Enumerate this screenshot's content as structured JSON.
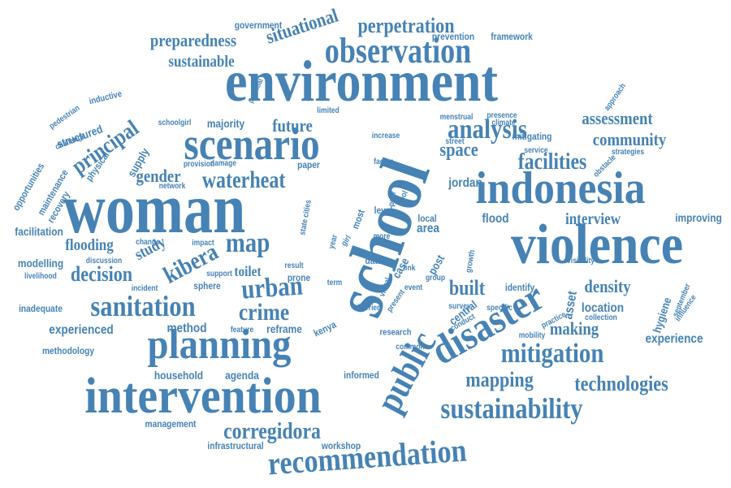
{
  "colors": {
    "ink": "#4682B4",
    "background": "#FFFFFF"
  },
  "words": [
    "environment",
    "woman",
    "violence",
    "indonesia",
    "school",
    "scenario",
    "intervention",
    "planning",
    "disaster",
    "public",
    "recommendation",
    "observation",
    "waterheat",
    "sanitation",
    "urban",
    "sustainability",
    "map",
    "analysis",
    "mitigation",
    "corregidora",
    "crime",
    "kibera",
    "facilities",
    "space",
    "perpetration",
    "mapping",
    "technologies",
    "decision",
    "community",
    "principal",
    "gender",
    "assessment",
    "interview",
    "preparedness",
    "sustainable",
    "situational",
    "future",
    "flooding",
    "built",
    "density",
    "making",
    "study",
    "method",
    "household",
    "agenda",
    "experienced",
    "experience",
    "location",
    "improving",
    "jordan",
    "flood",
    "area",
    "toilet",
    "facilitation",
    "modelling",
    "inadequate",
    "methodology",
    "management",
    "infrastructural",
    "workshop",
    "informed",
    "reframe",
    "kenya",
    "government",
    "prevention",
    "framework",
    "majority",
    "supply",
    "structured",
    "maintenance",
    "recovery",
    "opportunities",
    "physical",
    "challenge",
    "inductive",
    "pedestrian",
    "schoolgirl",
    "potential",
    "network",
    "provision",
    "paper",
    "damage",
    "increase",
    "factor",
    "level",
    "most",
    "more",
    "data",
    "local",
    "post",
    "central",
    "survey",
    "hygiene",
    "asset",
    "identify",
    "specific",
    "collection",
    "practice",
    "mobility",
    "research",
    "common",
    "conduct",
    "barrier",
    "visual",
    "present",
    "case",
    "link",
    "group",
    "event",
    "growth",
    "visibility",
    "obstacle",
    "strategies",
    "service",
    "mitigating",
    "presence",
    "menstrual",
    "climate",
    "approach",
    "september",
    "influence",
    "limited",
    "sphere",
    "support",
    "result",
    "prone",
    "term",
    "incident",
    "livelihood",
    "discussion",
    "impact",
    "change",
    "feature",
    "street",
    "tool",
    "poor",
    "state cities",
    "year",
    "girl"
  ]
}
